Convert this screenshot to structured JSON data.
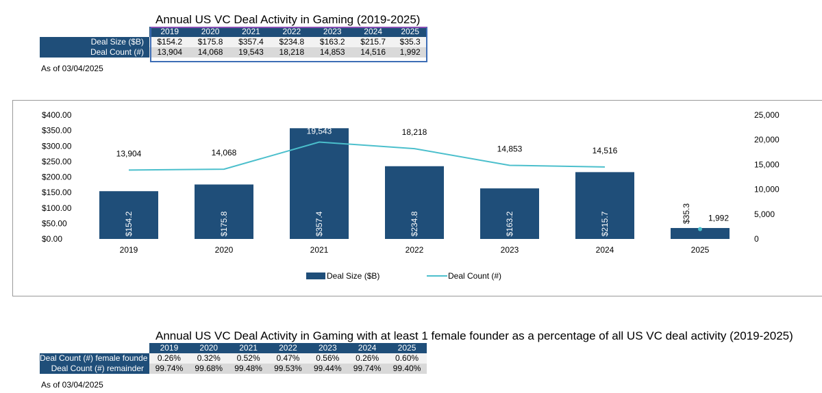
{
  "top_table": {
    "title": "Annual US VC Deal Activity in Gaming (2019-2025)",
    "years": [
      "2019",
      "2020",
      "2021",
      "2022",
      "2023",
      "2024",
      "2025"
    ],
    "rows": [
      {
        "label": "Deal Size ($B)",
        "values": [
          "$154.2",
          "$175.8",
          "$357.4",
          "$234.8",
          "$163.2",
          "$215.7",
          "$35.3"
        ]
      },
      {
        "label": "Deal Count (#)",
        "values": [
          "13,904",
          "14,068",
          "19,543",
          "18,218",
          "14,853",
          "14,516",
          "1,992"
        ]
      }
    ],
    "as_of": "As of 03/04/2025"
  },
  "chart_data": {
    "type": "bar+line",
    "categories": [
      "2019",
      "2020",
      "2021",
      "2022",
      "2023",
      "2024",
      "2025"
    ],
    "series": [
      {
        "name": "Deal Size ($B)",
        "type": "bar",
        "axis": "left",
        "color": "#1f4e79",
        "values": [
          154.2,
          175.8,
          357.4,
          234.8,
          163.2,
          215.7,
          35.3
        ],
        "labels": [
          "$154.2",
          "$175.8",
          "$357.4",
          "$234.8",
          "$163.2",
          "$215.7",
          "$35.3"
        ]
      },
      {
        "name": "Deal Count (#)",
        "type": "line",
        "axis": "right",
        "color": "#4bbfcc",
        "values": [
          13904,
          14068,
          19543,
          18218,
          14853,
          14516,
          1992
        ],
        "labels": [
          "13,904",
          "14,068",
          "19,543",
          "18,218",
          "14,853",
          "14,516",
          "1,992"
        ]
      }
    ],
    "left_axis": {
      "ylim": [
        0,
        400
      ],
      "ticks": [
        "$0.00",
        "$50.00",
        "$100.00",
        "$150.00",
        "$200.00",
        "$250.00",
        "$300.00",
        "$350.00",
        "$400.00"
      ]
    },
    "right_axis": {
      "ylim": [
        0,
        25000
      ],
      "ticks": [
        "0",
        "5,000",
        "10,000",
        "15,000",
        "20,000",
        "25,000"
      ]
    },
    "grid": false,
    "legend": "bottom"
  },
  "bottom_table": {
    "title": "Annual US VC Deal Activity in Gaming with at least 1 female founder as a percentage of all US VC deal activity (2019-2025)",
    "years": [
      "2019",
      "2020",
      "2021",
      "2022",
      "2023",
      "2024",
      "2025"
    ],
    "rows": [
      {
        "label": "Deal Count (#) female founde",
        "values": [
          "0.26%",
          "0.32%",
          "0.52%",
          "0.47%",
          "0.56%",
          "0.26%",
          "0.60%"
        ]
      },
      {
        "label": "Deal Count (#) remainder",
        "values": [
          "99.74%",
          "99.68%",
          "99.48%",
          "99.53%",
          "99.44%",
          "99.74%",
          "99.40%"
        ]
      }
    ],
    "as_of": "As of 03/04/2025"
  }
}
